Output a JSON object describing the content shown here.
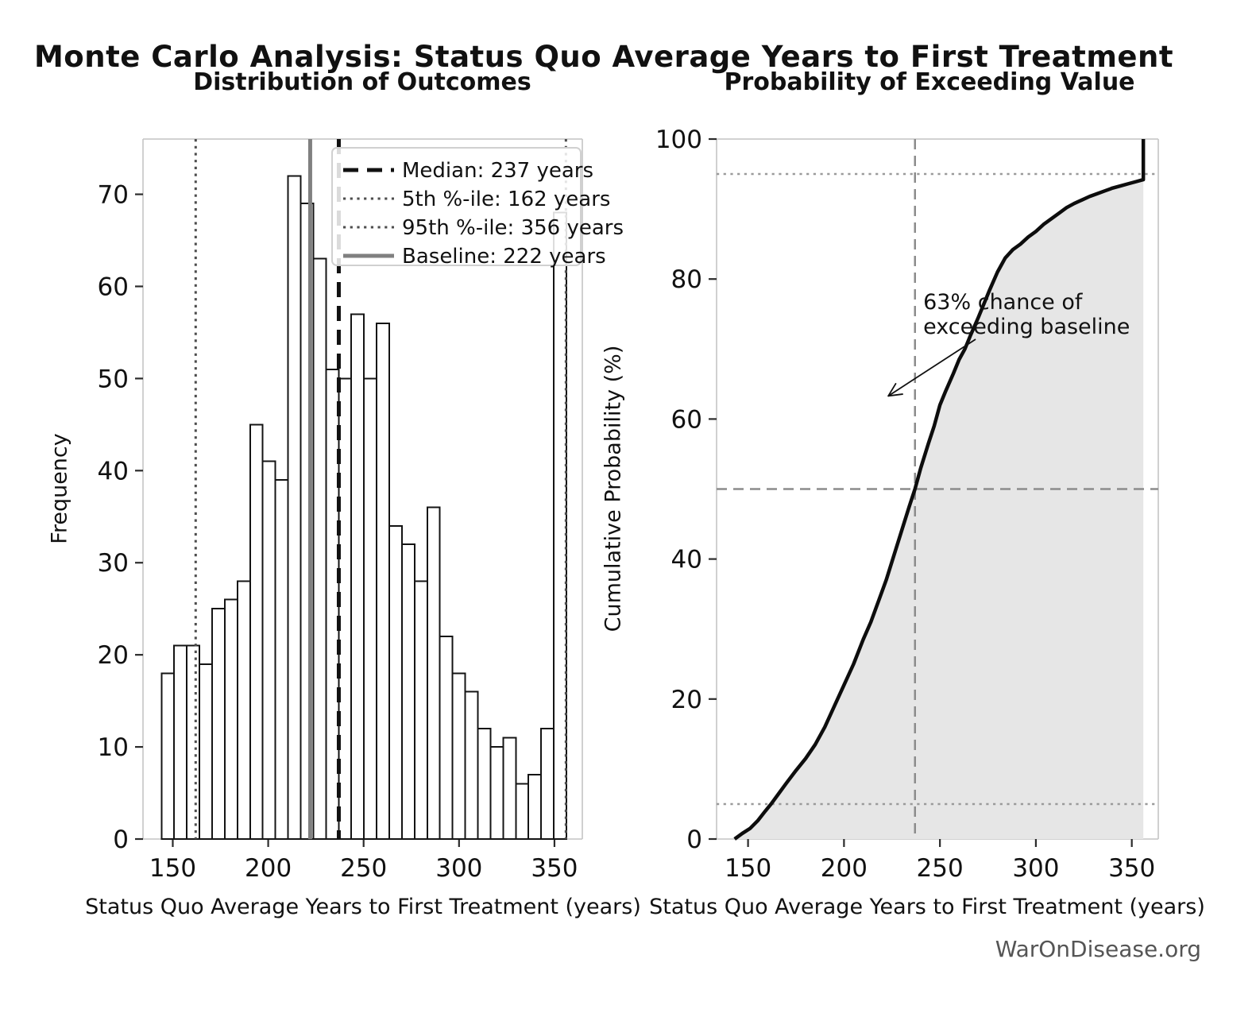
{
  "page": {
    "title": "Monte Carlo Analysis: Status Quo Average Years to First Treatment",
    "footer": "WarOnDisease.org"
  },
  "colors": {
    "background": "#ffffff",
    "text": "#111111",
    "bar_fill": "#ffffff",
    "bar_edge": "#141414",
    "median_line": "#111111",
    "percentile_line": "#4d4d4d",
    "baseline_line": "#808080",
    "curve": "#0d0d0d",
    "area_fill": "#e6e6e6",
    "ref_dashed": "#8c8c8c",
    "ref_dotted": "#9a9a9a",
    "spine": "#c4c4c4",
    "tick": "#2b2b2b",
    "legend_border": "#d0d0d0",
    "footer_text": "#555555"
  },
  "chart_data": [
    {
      "type": "bar",
      "subtype": "histogram",
      "title": "Distribution of Outcomes",
      "xlabel": "Status Quo Average Years to First Treatment (years)",
      "ylabel": "Frequency",
      "xlim": [
        134.4,
        364.6
      ],
      "ylim": [
        0,
        76
      ],
      "x_ticks": [
        150,
        200,
        250,
        300,
        350
      ],
      "y_ticks": [
        0,
        10,
        20,
        30,
        40,
        50,
        60,
        70
      ],
      "grid": false,
      "bins": {
        "start": 144.1,
        "width": 6.63
      },
      "counts": [
        18,
        21,
        21,
        19,
        25,
        26,
        28,
        45,
        41,
        39,
        72,
        69,
        63,
        51,
        50,
        57,
        50,
        56,
        34,
        32,
        28,
        36,
        22,
        18,
        16,
        12,
        10,
        11,
        6,
        7,
        12,
        68
      ],
      "ref_lines": [
        {
          "id": "median",
          "value": 237,
          "label": "Median: 237 years",
          "style": "dashed",
          "width": 5
        },
        {
          "id": "p5",
          "value": 162,
          "label": "5th %-ile: 162 years",
          "style": "dotted",
          "width": 3
        },
        {
          "id": "p95",
          "value": 356,
          "label": "95th %-ile: 356 years",
          "style": "dotted",
          "width": 3
        },
        {
          "id": "baseline",
          "value": 222,
          "label": "Baseline: 222 years",
          "style": "solid",
          "width": 5
        }
      ],
      "legend_position": "upper right"
    },
    {
      "type": "line",
      "subtype": "cdf",
      "title": "Probability of Exceeding Value",
      "xlabel": "Status Quo Average Years to First Treatment (years)",
      "ylabel": "Cumulative Probability (%)",
      "xlim": [
        133.6,
        363.8
      ],
      "ylim": [
        0,
        100
      ],
      "x_ticks": [
        150,
        200,
        250,
        300,
        350
      ],
      "y_ticks": [
        0,
        20,
        40,
        60,
        80,
        100
      ],
      "grid": false,
      "cdf_points": [
        [
          143,
          0
        ],
        [
          147,
          0.8
        ],
        [
          151,
          1.5
        ],
        [
          155,
          2.6
        ],
        [
          159,
          4
        ],
        [
          162,
          5
        ],
        [
          166,
          6.5
        ],
        [
          170,
          8
        ],
        [
          175,
          9.8
        ],
        [
          180,
          11.5
        ],
        [
          185,
          13.5
        ],
        [
          190,
          16
        ],
        [
          195,
          19
        ],
        [
          200,
          22
        ],
        [
          205,
          25
        ],
        [
          210,
          28.5
        ],
        [
          214,
          31
        ],
        [
          218,
          34
        ],
        [
          222,
          37
        ],
        [
          226,
          40.5
        ],
        [
          230,
          44
        ],
        [
          234,
          47.5
        ],
        [
          237,
          50
        ],
        [
          240,
          53
        ],
        [
          244,
          56.5
        ],
        [
          247,
          59
        ],
        [
          250,
          62
        ],
        [
          253,
          64
        ],
        [
          257,
          66.5
        ],
        [
          260,
          68.5
        ],
        [
          263,
          70
        ],
        [
          266,
          72
        ],
        [
          270,
          74.5
        ],
        [
          273,
          76.5
        ],
        [
          276,
          78.5
        ],
        [
          280,
          81
        ],
        [
          284,
          83
        ],
        [
          288,
          84.2
        ],
        [
          292,
          85
        ],
        [
          296,
          86
        ],
        [
          300,
          86.8
        ],
        [
          304,
          87.8
        ],
        [
          308,
          88.6
        ],
        [
          312,
          89.4
        ],
        [
          316,
          90.2
        ],
        [
          320,
          90.8
        ],
        [
          324,
          91.3
        ],
        [
          328,
          91.8
        ],
        [
          332,
          92.2
        ],
        [
          336,
          92.6
        ],
        [
          340,
          93
        ],
        [
          344,
          93.3
        ],
        [
          348,
          93.6
        ],
        [
          352,
          93.9
        ],
        [
          356,
          94.2
        ]
      ],
      "end_jump_to": 100,
      "ref_lines": [
        {
          "id": "median-v",
          "axis": "x",
          "value": 237,
          "style": "dashed"
        },
        {
          "id": "fifty-h",
          "axis": "y",
          "value": 50,
          "style": "dashed"
        },
        {
          "id": "p5-h",
          "axis": "y",
          "value": 5,
          "style": "dotted"
        },
        {
          "id": "p95-h",
          "axis": "y",
          "value": 95,
          "style": "dotted"
        }
      ],
      "annotation": {
        "lines": [
          "63% chance of",
          "exceeding baseline"
        ],
        "text_xy": [
          241.3,
          78.2
        ],
        "arrow_from_xy": [
          268.6,
          71.4
        ],
        "arrow_to_xy": [
          223.1,
          63.3
        ]
      }
    }
  ]
}
